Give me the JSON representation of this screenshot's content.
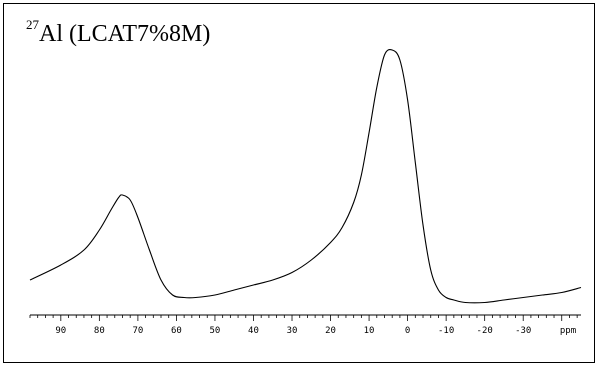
{
  "chart_data": {
    "type": "line",
    "title_sup": "27",
    "title_main": "Al (LCAT7%8M)",
    "xlabel": "ppm",
    "xlim": [
      98,
      -45
    ],
    "ylim": [
      0,
      1
    ],
    "x_reversed": true,
    "grid": false,
    "ticks": [
      {
        "value": 90,
        "label": "90"
      },
      {
        "value": 80,
        "label": "80"
      },
      {
        "value": 70,
        "label": "70"
      },
      {
        "value": 60,
        "label": "60"
      },
      {
        "value": 50,
        "label": "50"
      },
      {
        "value": 40,
        "label": "40"
      },
      {
        "value": 30,
        "label": "30"
      },
      {
        "value": 20,
        "label": "20"
      },
      {
        "value": 10,
        "label": "10"
      },
      {
        "value": 0,
        "label": "0"
      },
      {
        "value": -10,
        "label": "-10"
      },
      {
        "value": -20,
        "label": "-20"
      },
      {
        "value": -30,
        "label": "-30"
      }
    ],
    "series": [
      {
        "x": [
          98,
          90,
          84,
          80,
          77,
          75,
          74,
          72,
          70,
          67,
          64,
          61,
          58,
          55,
          50,
          45,
          40,
          35,
          30,
          25,
          20,
          17,
          14,
          12,
          10,
          8,
          6,
          4,
          2,
          0,
          -2,
          -4,
          -6,
          -8,
          -10,
          -12,
          -15,
          -20,
          -25,
          -30,
          -35,
          -40,
          -45
        ],
        "y": [
          0.08,
          0.14,
          0.2,
          0.28,
          0.36,
          0.41,
          0.42,
          0.4,
          0.33,
          0.2,
          0.08,
          0.02,
          0.01,
          0.01,
          0.02,
          0.04,
          0.06,
          0.08,
          0.11,
          0.16,
          0.23,
          0.29,
          0.39,
          0.5,
          0.67,
          0.85,
          0.98,
          1.0,
          0.96,
          0.8,
          0.55,
          0.3,
          0.12,
          0.04,
          0.01,
          0.0,
          -0.01,
          -0.01,
          0.0,
          0.01,
          0.02,
          0.03,
          0.05
        ],
        "color": "#000000"
      }
    ]
  }
}
